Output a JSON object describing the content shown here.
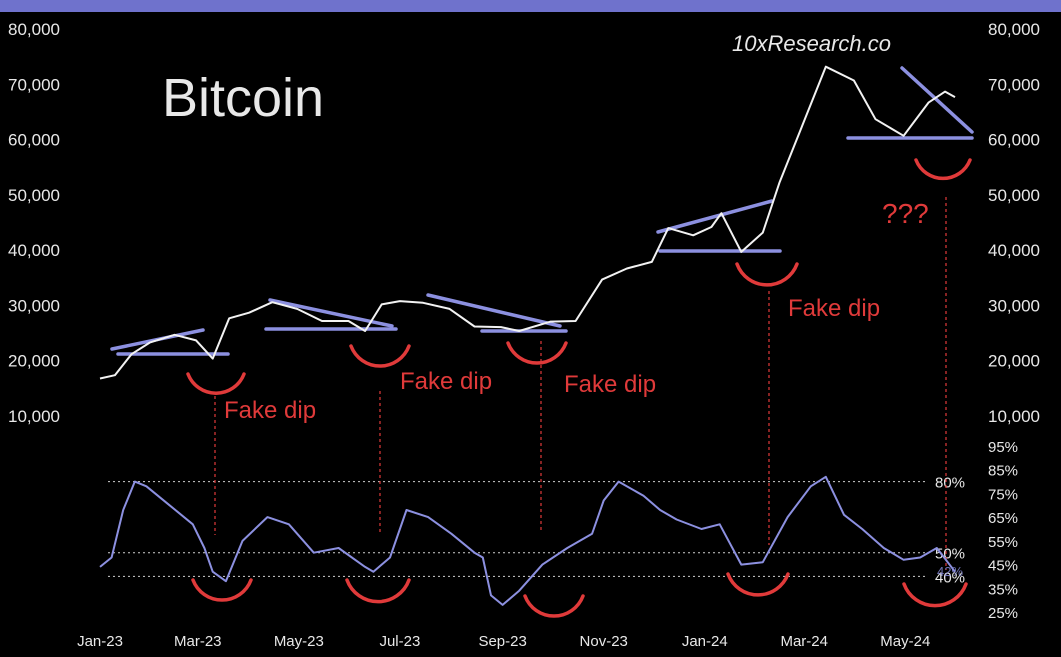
{
  "chart_data": [
    {
      "type": "line",
      "title": "Bitcoin",
      "watermark": "10xResearch.co",
      "y_ticks": [
        "80,000",
        "70,000",
        "60,000",
        "50,000",
        "40,000",
        "30,000",
        "20,000",
        "10,000"
      ],
      "y_tick_values": [
        80000,
        70000,
        60000,
        50000,
        40000,
        30000,
        20000,
        10000
      ],
      "ylim": [
        10000,
        80000
      ],
      "xlim": [
        "2023-01-01",
        "2024-05-31"
      ],
      "series": [
        {
          "color": "#f2f2f2",
          "x": [
            "2023-01-01",
            "2023-01-10",
            "2023-01-20",
            "2023-01-31",
            "2023-02-15",
            "2023-02-28",
            "2023-03-10",
            "2023-03-20",
            "2023-04-01",
            "2023-04-15",
            "2023-04-30",
            "2023-05-15",
            "2023-05-31",
            "2023-06-10",
            "2023-06-20",
            "2023-07-01",
            "2023-07-15",
            "2023-07-31",
            "2023-08-15",
            "2023-08-31",
            "2023-09-11",
            "2023-09-30",
            "2023-10-15",
            "2023-10-31",
            "2023-11-15",
            "2023-11-30",
            "2023-12-10",
            "2023-12-25",
            "2024-01-05",
            "2024-01-11",
            "2024-01-23",
            "2024-02-05",
            "2024-02-15",
            "2024-02-29",
            "2024-03-14",
            "2024-03-31",
            "2024-04-13",
            "2024-04-30",
            "2024-05-15",
            "2024-05-25",
            "2024-05-31"
          ],
          "y": [
            16600,
            17200,
            21000,
            23100,
            24500,
            23500,
            20200,
            27500,
            28500,
            30400,
            29200,
            27000,
            27000,
            25200,
            30000,
            30600,
            30300,
            29200,
            26000,
            25900,
            25200,
            26900,
            27000,
            34500,
            36500,
            37700,
            43800,
            42500,
            44000,
            46500,
            39500,
            43000,
            52000,
            62500,
            73000,
            70500,
            63500,
            60500,
            66500,
            68500,
            67500
          ]
        }
      ],
      "fake_dip_label": "Fake dip",
      "question_label": "???"
    },
    {
      "type": "line",
      "y_ticks": [
        "95%",
        "85%",
        "75%",
        "65%",
        "55%",
        "45%",
        "35%",
        "25%"
      ],
      "y_tick_values": [
        95,
        85,
        75,
        65,
        55,
        45,
        35,
        25
      ],
      "ylim": [
        25,
        95
      ],
      "x_ticks": [
        "Jan-23",
        "Mar-23",
        "May-23",
        "Jul-23",
        "Sep-23",
        "Nov-23",
        "Jan-24",
        "Mar-24",
        "May-24"
      ],
      "x_tick_dates": [
        "2023-01-01",
        "2023-03-01",
        "2023-05-01",
        "2023-07-01",
        "2023-09-01",
        "2023-11-01",
        "2024-01-01",
        "2024-03-01",
        "2024-05-01"
      ],
      "reference_lines": [
        {
          "value": 80,
          "label": "80%"
        },
        {
          "value": 50,
          "label": "50%"
        },
        {
          "value": 40,
          "label": "40%"
        }
      ],
      "current_value_label": "42%",
      "series": [
        {
          "color": "#8c90e0",
          "x": [
            "2023-01-01",
            "2023-01-08",
            "2023-01-15",
            "2023-01-22",
            "2023-01-29",
            "2023-02-12",
            "2023-02-26",
            "2023-03-05",
            "2023-03-10",
            "2023-03-18",
            "2023-03-28",
            "2023-04-12",
            "2023-04-25",
            "2023-05-10",
            "2023-05-25",
            "2023-06-10",
            "2023-06-15",
            "2023-06-25",
            "2023-07-05",
            "2023-07-18",
            "2023-08-01",
            "2023-08-15",
            "2023-08-20",
            "2023-08-25",
            "2023-09-01",
            "2023-09-11",
            "2023-09-25",
            "2023-10-10",
            "2023-10-25",
            "2023-11-01",
            "2023-11-10",
            "2023-11-25",
            "2023-12-05",
            "2023-12-15",
            "2023-12-30",
            "2024-01-10",
            "2024-01-23",
            "2024-02-05",
            "2024-02-20",
            "2024-03-05",
            "2024-03-14",
            "2024-03-25",
            "2024-04-05",
            "2024-04-18",
            "2024-04-30",
            "2024-05-10",
            "2024-05-20",
            "2024-05-31"
          ],
          "y": [
            44,
            48,
            68,
            80,
            78,
            70,
            62,
            52,
            42,
            38,
            55,
            65,
            62,
            50,
            52,
            44,
            42,
            48,
            68,
            65,
            58,
            50,
            48,
            32,
            28,
            34,
            45,
            52,
            58,
            72,
            80,
            74,
            68,
            64,
            60,
            62,
            45,
            46,
            65,
            78,
            82,
            66,
            60,
            52,
            47,
            48,
            52,
            42
          ]
        }
      ]
    }
  ]
}
